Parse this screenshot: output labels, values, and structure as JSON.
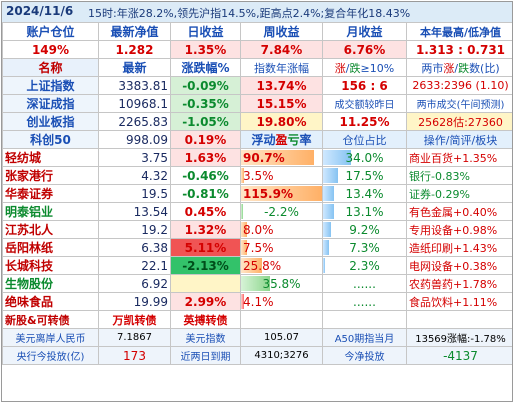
{
  "header": {
    "date": "2024/11/6",
    "info": "15时:年涨28.2%,领先沪指14.5%,距高点2.4%;复合年化18.43%"
  },
  "summary": {
    "labels": [
      "账户仓位",
      "最新净值",
      "日收益",
      "周收益",
      "月收益",
      "本年最高/低净值"
    ],
    "position": "149%",
    "nav": "1.282",
    "day": "1.35%",
    "week": "7.84%",
    "month": "6.76%",
    "high_low": "1.313 : 0.731"
  },
  "index_header": {
    "name": "名称",
    "latest": "最新",
    "change": "涨跌幅%",
    "yearly": "指数年涨幅",
    "ratio_up": "涨",
    "ratio_sep": "/",
    "ratio_down": "跌",
    "ratio_suffix": "≥10%",
    "market_a": "两市",
    "market_up": "涨",
    "market_sep": "/",
    "market_down": "跌",
    "market_b": "数(比)"
  },
  "indices": [
    {
      "name": "上证指数",
      "latest": "3383.81",
      "change": "-0.09%",
      "yearly": "13.74%",
      "col5": "156 : 6",
      "col6": "2633:2396 (1.10)"
    },
    {
      "name": "深证成指",
      "latest": "10968.1",
      "change": "-0.35%",
      "yearly": "15.15%",
      "col5": "成交额较昨日",
      "col6": "两市成交(午间预测)"
    },
    {
      "name": "创业板指",
      "latest": "2265.83",
      "change": "-1.05%",
      "yearly": "19.80%",
      "col5": "11.25%",
      "col6": "25628估:27360"
    },
    {
      "name": "科创50",
      "latest": "998.09",
      "change": "0.19%",
      "yearly_label_a": "浮动",
      "yearly_label_b": "盈",
      "yearly_label_c": "亏",
      "yearly_label_d": "率",
      "col5": "仓位占比",
      "col6": "操作/简评/板块"
    }
  ],
  "holdings": [
    {
      "name": "轻纺城",
      "price": "3.75",
      "change": "1.63%",
      "float": "90.7%",
      "float_v": 90.7,
      "pos": "34.0%",
      "pos_v": 34.0,
      "note": "商业百货+1.35%"
    },
    {
      "name": "张家港行",
      "price": "4.32",
      "change": "-0.46%",
      "float": "3.5%",
      "float_v": 3.5,
      "pos": "17.5%",
      "pos_v": 17.5,
      "note": "银行-0.83%"
    },
    {
      "name": "华泰证券",
      "price": "19.5",
      "change": "-0.81%",
      "float": "115.9%",
      "float_v": 100,
      "pos": "13.4%",
      "pos_v": 13.4,
      "note": "证券-0.29%"
    },
    {
      "name": "明泰铝业",
      "price": "13.54",
      "change": "0.45%",
      "float": "-2.2%",
      "float_v": 2.2,
      "pos": "13.1%",
      "pos_v": 13.1,
      "note": "有色金属+0.40%"
    },
    {
      "name": "江苏北人",
      "price": "19.2",
      "change": "1.32%",
      "float": "8.0%",
      "float_v": 8.0,
      "pos": "9.2%",
      "pos_v": 9.2,
      "note": "专用设备+0.98%"
    },
    {
      "name": "岳阳林纸",
      "price": "6.38",
      "change": "5.11%",
      "float": "7.5%",
      "float_v": 7.5,
      "pos": "7.3%",
      "pos_v": 7.3,
      "note": "造纸印刷+1.43%"
    },
    {
      "name": "长城科技",
      "price": "22.1",
      "change": "-2.13%",
      "float": "25.8%",
      "float_v": 25.8,
      "pos": "2.3%",
      "pos_v": 2.3,
      "note": "电网设备+0.38%"
    },
    {
      "name": "生物股份",
      "price": "6.92",
      "change": "",
      "float": "35.8%",
      "float_v": 35.8,
      "pos": "......",
      "pos_v": 0,
      "note": "农药兽药+1.78%"
    },
    {
      "name": "绝味食品",
      "price": "19.99",
      "change": "2.99%",
      "float": "4.1%",
      "float_v": 4.1,
      "pos": "......",
      "pos_v": 0,
      "note": "食品饮料+1.11%"
    }
  ],
  "convert_row": {
    "label": "新股&可转债",
    "a": "万凯转债",
    "b": "英搏转债"
  },
  "footer": {
    "row1": {
      "a": "美元离岸人民币",
      "b": "7.1867",
      "c": "美元指数",
      "d": "105.07",
      "e": "A50期指当月",
      "f": "13569涨幅:-1.78%"
    },
    "row2": {
      "a": "央行今投放(亿)",
      "b": "173",
      "c": "近两日到期",
      "d": "4310;3276",
      "e": "今净投放",
      "f": "-4137"
    }
  }
}
